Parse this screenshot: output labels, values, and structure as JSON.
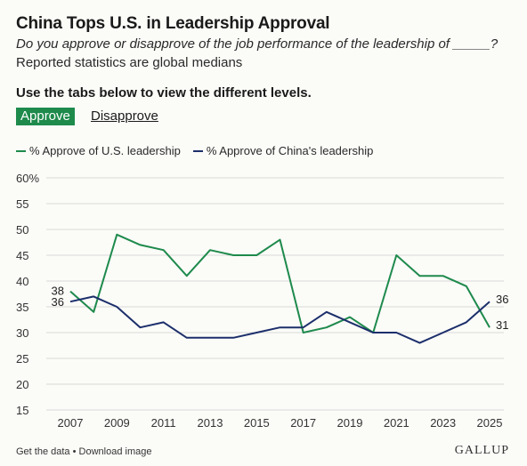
{
  "header": {
    "title": "China Tops U.S. in Leadership Approval",
    "subtitle": "Do you approve or disapprove of the job performance of the leadership of _____?",
    "note": "Reported statistics are global medians"
  },
  "tabs": {
    "instruction": "Use the tabs below to view the different levels.",
    "active_label": "Approve",
    "inactive_label": "Disapprove"
  },
  "legend": {
    "us_label": "% Approve of U.S. leadership",
    "china_label": "% Approve of China's leadership"
  },
  "footer": {
    "get_data": "Get the data",
    "separator": "•",
    "download": "Download image",
    "brand": "GALLUP"
  },
  "colors": {
    "us": "#1e8a4c",
    "china": "#1c2f6b",
    "grid": "#d8d8d8",
    "axis_text": "#333333"
  },
  "chart_data": {
    "type": "line",
    "title": "China Tops U.S. in Leadership Approval",
    "xlabel": "",
    "ylabel": "",
    "ylim": [
      15,
      60
    ],
    "yticks": [
      15,
      20,
      25,
      30,
      35,
      40,
      45,
      50,
      55,
      60
    ],
    "ytick_labels": [
      "15",
      "20",
      "25",
      "30",
      "35",
      "40",
      "45",
      "50",
      "55",
      "60%"
    ],
    "xlim": [
      2007,
      2025
    ],
    "xticks": [
      2007,
      2009,
      2011,
      2013,
      2015,
      2017,
      2019,
      2021,
      2023,
      2025
    ],
    "grid": true,
    "legend": "top-left",
    "series": [
      {
        "name": "% Approve of U.S. leadership",
        "x": [
          2007,
          2008,
          2009,
          2010,
          2011,
          2012,
          2013,
          2014,
          2015,
          2016,
          2017,
          2018,
          2019,
          2020,
          2021,
          2022,
          2023,
          2024,
          2025
        ],
        "values": [
          38,
          34,
          49,
          47,
          46,
          41,
          46,
          45,
          45,
          48,
          30,
          31,
          33,
          30,
          45,
          41,
          41,
          39,
          31
        ],
        "start_label": "38",
        "end_label": "31"
      },
      {
        "name": "% Approve of China's leadership",
        "x": [
          2007,
          2008,
          2009,
          2010,
          2011,
          2012,
          2013,
          2014,
          2015,
          2016,
          2017,
          2018,
          2019,
          2020,
          2021,
          2022,
          2023,
          2024,
          2025
        ],
        "values": [
          36,
          37,
          35,
          31,
          32,
          29,
          29,
          29,
          30,
          31,
          31,
          34,
          32,
          30,
          30,
          28,
          30,
          32,
          36
        ],
        "start_label": "36",
        "end_label": "36"
      }
    ]
  }
}
